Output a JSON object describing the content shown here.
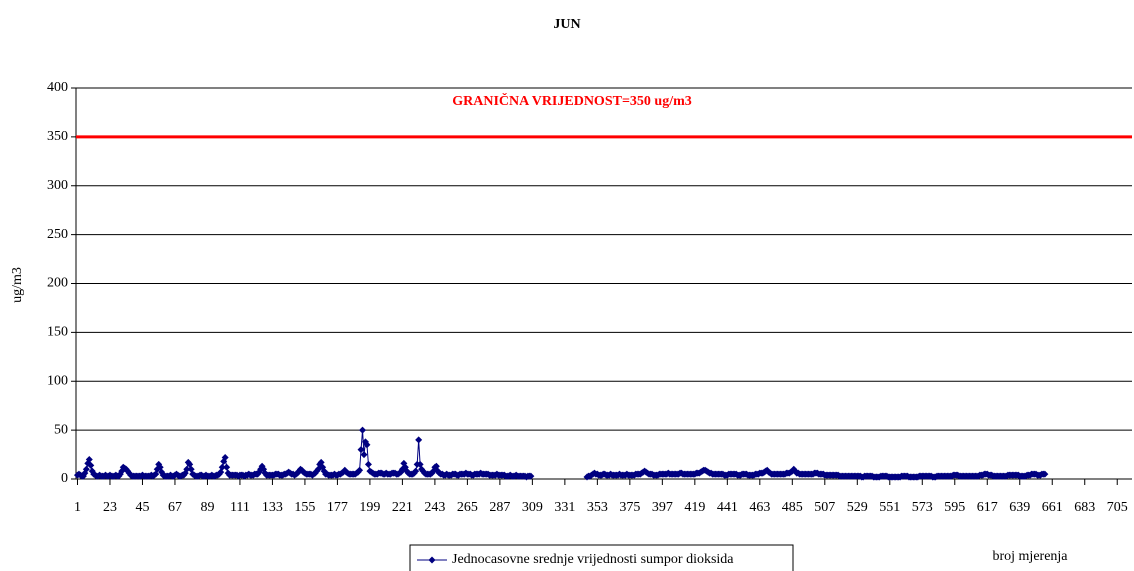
{
  "chart_data": {
    "type": "line",
    "title": "JUN",
    "y_label": "ug/m3",
    "x_label": "broj mjerenja",
    "threshold": {
      "value": 350,
      "label": "GRANIČNA VRIJEDNOST=350 ug/m3",
      "color": "#ff0000"
    },
    "xlim": [
      0,
      715
    ],
    "xticks": [
      1,
      23,
      45,
      67,
      89,
      111,
      133,
      155,
      177,
      199,
      221,
      243,
      265,
      287,
      309,
      331,
      353,
      375,
      397,
      419,
      441,
      463,
      485,
      507,
      529,
      551,
      573,
      595,
      617,
      639,
      661,
      683,
      705
    ],
    "ylim": [
      0,
      400
    ],
    "yticks": [
      0,
      50,
      100,
      150,
      200,
      250,
      300,
      350,
      400
    ],
    "grid": true,
    "x": [
      1,
      2,
      3,
      4,
      5,
      6,
      7,
      8,
      9,
      10,
      11,
      12,
      13,
      14,
      15,
      16,
      17,
      18,
      19,
      20,
      21,
      22,
      23,
      24,
      25,
      26,
      27,
      28,
      29,
      30,
      31,
      32,
      33,
      34,
      35,
      36,
      37,
      38,
      39,
      40,
      41,
      42,
      43,
      44,
      45,
      46,
      47,
      48,
      49,
      50,
      51,
      52,
      53,
      54,
      55,
      56,
      57,
      58,
      59,
      60,
      61,
      62,
      63,
      64,
      65,
      66,
      67,
      68,
      69,
      70,
      71,
      72,
      73,
      74,
      75,
      76,
      77,
      78,
      79,
      80,
      81,
      82,
      83,
      84,
      85,
      86,
      87,
      88,
      89,
      90,
      91,
      92,
      93,
      94,
      95,
      96,
      97,
      98,
      99,
      100,
      101,
      102,
      103,
      104,
      105,
      106,
      107,
      108,
      109,
      110,
      111,
      112,
      113,
      114,
      115,
      116,
      117,
      118,
      119,
      120,
      121,
      122,
      123,
      124,
      125,
      126,
      127,
      128,
      129,
      130,
      131,
      132,
      133,
      134,
      135,
      136,
      137,
      138,
      139,
      140,
      141,
      142,
      143,
      144,
      145,
      146,
      147,
      148,
      149,
      150,
      151,
      152,
      153,
      154,
      155,
      156,
      157,
      158,
      159,
      160,
      161,
      162,
      163,
      164,
      165,
      166,
      167,
      168,
      169,
      170,
      171,
      172,
      173,
      174,
      175,
      176,
      177,
      178,
      179,
      180,
      181,
      182,
      183,
      184,
      185,
      186,
      187,
      188,
      189,
      190,
      191,
      192,
      193,
      194,
      195,
      196,
      197,
      198,
      199,
      200,
      201,
      202,
      203,
      204,
      205,
      206,
      207,
      208,
      209,
      210,
      211,
      212,
      213,
      214,
      215,
      216,
      217,
      218,
      219,
      220,
      221,
      222,
      223,
      224,
      225,
      226,
      227,
      228,
      229,
      230,
      231,
      232,
      233,
      234,
      235,
      236,
      237,
      238,
      239,
      240,
      241,
      242,
      243,
      244,
      245,
      246,
      247,
      248,
      249,
      250,
      251,
      252,
      253,
      254,
      255,
      256,
      257,
      258,
      259,
      260,
      261,
      262,
      263,
      264,
      265,
      266,
      267,
      268,
      269,
      270,
      271,
      272,
      273,
      274,
      275,
      276,
      277,
      278,
      279,
      280,
      281,
      282,
      283,
      284,
      285,
      286,
      287,
      288,
      289,
      290,
      291,
      292,
      293,
      294,
      295,
      296,
      297,
      298,
      299,
      300,
      301,
      302,
      303,
      304,
      305,
      306,
      307,
      308,
      309,
      310,
      311,
      312,
      313,
      314,
      315,
      316,
      317,
      318,
      319,
      320,
      321,
      322,
      323,
      324,
      325,
      326,
      327,
      328,
      329,
      330,
      331,
      332,
      333,
      334,
      335,
      336,
      337,
      338,
      339,
      340,
      341,
      342,
      343,
      344,
      345,
      346,
      347,
      348,
      349,
      350,
      351,
      352,
      353,
      354,
      355,
      356,
      357,
      358,
      359,
      360,
      361,
      362,
      363,
      364,
      365,
      366,
      367,
      368,
      369,
      370,
      371,
      372,
      373,
      374,
      375,
      376,
      377,
      378,
      379,
      380,
      381,
      382,
      383,
      384,
      385,
      386,
      387,
      388,
      389,
      390,
      391,
      392,
      393,
      394,
      395,
      396,
      397,
      398,
      399,
      400,
      401,
      402,
      403,
      404,
      405,
      406,
      407,
      408,
      409,
      410,
      411,
      412,
      413,
      414,
      415,
      416,
      417,
      418,
      419,
      420,
      421,
      422,
      423,
      424,
      425,
      426,
      427,
      428,
      429,
      430,
      431,
      432,
      433,
      434,
      435,
      436,
      437,
      438,
      439,
      440,
      441,
      442,
      443,
      444,
      445,
      446,
      447,
      448,
      449,
      450,
      451,
      452,
      453,
      454,
      455,
      456,
      457,
      458,
      459,
      460,
      461,
      462,
      463,
      464,
      465,
      466,
      467,
      468,
      469,
      470,
      471,
      472,
      473,
      474,
      475,
      476,
      477,
      478,
      479,
      480,
      481,
      482,
      483,
      484,
      485,
      486,
      487,
      488,
      489,
      490,
      491,
      492,
      493,
      494,
      495,
      496,
      497,
      498,
      499,
      500,
      501,
      502,
      503,
      504,
      505,
      506,
      507,
      508,
      509,
      510,
      511,
      512,
      513,
      514,
      515,
      516,
      517,
      518,
      519,
      520,
      521,
      522,
      523,
      524,
      525,
      526,
      527,
      528,
      529,
      530,
      531,
      532,
      533,
      534,
      535,
      536,
      537,
      538,
      539,
      540,
      541,
      542,
      543,
      544,
      545,
      546,
      547,
      548,
      549,
      550,
      551,
      552,
      553,
      554,
      555,
      556,
      557,
      558,
      559,
      560,
      561,
      562,
      563,
      564,
      565,
      566,
      567,
      568,
      569,
      570,
      571,
      572,
      573,
      574,
      575,
      576,
      577,
      578,
      579,
      580,
      581,
      582,
      583,
      584,
      585,
      586,
      587,
      588,
      589,
      590,
      591,
      592,
      593,
      594,
      595,
      596,
      597,
      598,
      599,
      600,
      601,
      602,
      603,
      604,
      605,
      606,
      607,
      608,
      609,
      610,
      611,
      612,
      613,
      614,
      615,
      616,
      617,
      618,
      619,
      620,
      621,
      622,
      623,
      624,
      625,
      626,
      627,
      628,
      629,
      630,
      631,
      632,
      633,
      634,
      635,
      636,
      637,
      638,
      639,
      640,
      641,
      642,
      643,
      644,
      645,
      646,
      647,
      648,
      649,
      650,
      651,
      652,
      653,
      654,
      655,
      656
    ],
    "series": [
      {
        "name": "Jednocasovne srednje vrijednosti sumpor dioksida",
        "color": "#000080",
        "values": [
          4,
          5,
          4,
          3,
          3,
          6,
          10,
          16,
          20,
          14,
          8,
          5,
          4,
          3,
          3,
          4,
          3,
          3,
          3,
          4,
          3,
          3,
          4,
          3,
          3,
          3,
          4,
          3,
          3,
          5,
          8,
          12,
          11,
          10,
          8,
          6,
          4,
          3,
          3,
          3,
          3,
          3,
          3,
          3,
          4,
          3,
          3,
          3,
          3,
          3,
          4,
          3,
          4,
          5,
          10,
          15,
          12,
          7,
          4,
          3,
          3,
          3,
          3,
          4,
          3,
          3,
          4,
          5,
          4,
          3,
          3,
          4,
          4,
          6,
          10,
          17,
          15,
          10,
          5,
          4,
          3,
          3,
          3,
          4,
          4,
          3,
          3,
          4,
          3,
          3,
          3,
          4,
          3,
          3,
          4,
          4,
          5,
          7,
          12,
          18,
          22,
          12,
          6,
          4,
          4,
          4,
          4,
          4,
          4,
          3,
          4,
          4,
          4,
          3,
          4,
          4,
          5,
          4,
          4,
          4,
          5,
          5,
          5,
          7,
          10,
          13,
          10,
          6,
          4,
          4,
          4,
          4,
          4,
          4,
          5,
          5,
          5,
          4,
          4,
          4,
          5,
          5,
          6,
          7,
          6,
          5,
          5,
          4,
          5,
          6,
          8,
          10,
          9,
          7,
          6,
          5,
          5,
          5,
          5,
          4,
          5,
          6,
          8,
          10,
          15,
          17,
          12,
          8,
          5,
          5,
          4,
          4,
          4,
          4,
          5,
          4,
          4,
          5,
          5,
          6,
          7,
          9,
          7,
          6,
          5,
          5,
          5,
          5,
          5,
          6,
          7,
          9,
          30,
          50,
          25,
          38,
          35,
          15,
          8,
          7,
          6,
          5,
          5,
          5,
          6,
          6,
          6,
          5,
          5,
          6,
          5,
          5,
          5,
          6,
          6,
          6,
          5,
          5,
          6,
          7,
          10,
          16,
          12,
          8,
          6,
          5,
          5,
          5,
          6,
          8,
          15,
          40,
          15,
          10,
          8,
          6,
          5,
          5,
          5,
          5,
          6,
          8,
          12,
          13,
          8,
          6,
          5,
          5,
          4,
          4,
          5,
          4,
          4,
          4,
          5,
          5,
          5,
          4,
          4,
          5,
          5,
          5,
          5,
          6,
          5,
          5,
          5,
          4,
          4,
          5,
          5,
          5,
          5,
          6,
          5,
          5,
          5,
          5,
          5,
          4,
          4,
          4,
          4,
          4,
          5,
          4,
          4,
          4,
          4,
          4,
          3,
          3,
          3,
          4,
          3,
          3,
          3,
          4,
          3,
          3,
          3,
          3,
          3,
          3,
          2,
          3,
          3,
          3,
          null,
          null,
          null,
          null,
          null,
          null,
          null,
          null,
          null,
          null,
          null,
          null,
          null,
          null,
          null,
          null,
          null,
          null,
          null,
          null,
          null,
          null,
          null,
          null,
          null,
          null,
          null,
          null,
          null,
          null,
          null,
          null,
          null,
          null,
          null,
          null,
          null,
          2,
          3,
          3,
          4,
          5,
          6,
          5,
          5,
          4,
          4,
          4,
          5,
          5,
          4,
          4,
          4,
          5,
          4,
          4,
          4,
          4,
          4,
          5,
          4,
          4,
          4,
          4,
          5,
          4,
          4,
          4,
          4,
          4,
          5,
          5,
          5,
          5,
          6,
          7,
          8,
          7,
          6,
          5,
          5,
          5,
          4,
          4,
          4,
          4,
          5,
          5,
          5,
          5,
          5,
          5,
          6,
          5,
          5,
          5,
          5,
          5,
          5,
          5,
          6,
          6,
          5,
          5,
          5,
          5,
          5,
          5,
          5,
          5,
          5,
          6,
          6,
          6,
          7,
          8,
          9,
          9,
          8,
          7,
          6,
          6,
          5,
          5,
          5,
          5,
          5,
          5,
          5,
          5,
          4,
          4,
          4,
          5,
          5,
          5,
          5,
          5,
          5,
          4,
          4,
          4,
          5,
          5,
          5,
          5,
          4,
          4,
          4,
          4,
          4,
          5,
          5,
          5,
          6,
          6,
          6,
          7,
          8,
          9,
          7,
          6,
          5,
          5,
          5,
          5,
          5,
          5,
          5,
          5,
          5,
          5,
          6,
          6,
          6,
          7,
          8,
          10,
          8,
          6,
          6,
          5,
          5,
          5,
          5,
          5,
          5,
          5,
          5,
          5,
          5,
          6,
          6,
          6,
          5,
          5,
          5,
          5,
          4,
          4,
          4,
          4,
          4,
          4,
          4,
          4,
          4,
          4,
          3,
          3,
          3,
          3,
          3,
          3,
          3,
          3,
          3,
          3,
          3,
          3,
          3,
          3,
          3,
          2,
          2,
          3,
          3,
          3,
          3,
          3,
          3,
          2,
          2,
          2,
          2,
          2,
          3,
          3,
          3,
          3,
          3,
          2,
          2,
          2,
          2,
          2,
          2,
          2,
          2,
          2,
          3,
          3,
          3,
          3,
          3,
          2,
          2,
          2,
          2,
          2,
          2,
          2,
          3,
          3,
          3,
          3,
          3,
          3,
          3,
          3,
          3,
          2,
          2,
          2,
          3,
          3,
          3,
          3,
          3,
          3,
          3,
          3,
          3,
          3,
          3,
          4,
          4,
          4,
          4,
          3,
          3,
          3,
          3,
          3,
          3,
          3,
          3,
          3,
          3,
          3,
          3,
          3,
          3,
          4,
          4,
          4,
          5,
          5,
          5,
          4,
          4,
          4,
          3,
          3,
          3,
          3,
          3,
          3,
          3,
          3,
          3,
          3,
          4,
          4,
          4,
          4,
          4,
          4,
          4,
          4,
          3,
          3,
          3,
          3,
          3,
          4,
          4,
          4,
          5,
          5,
          5,
          5,
          4,
          4,
          4,
          5,
          5,
          5
        ]
      }
    ]
  }
}
